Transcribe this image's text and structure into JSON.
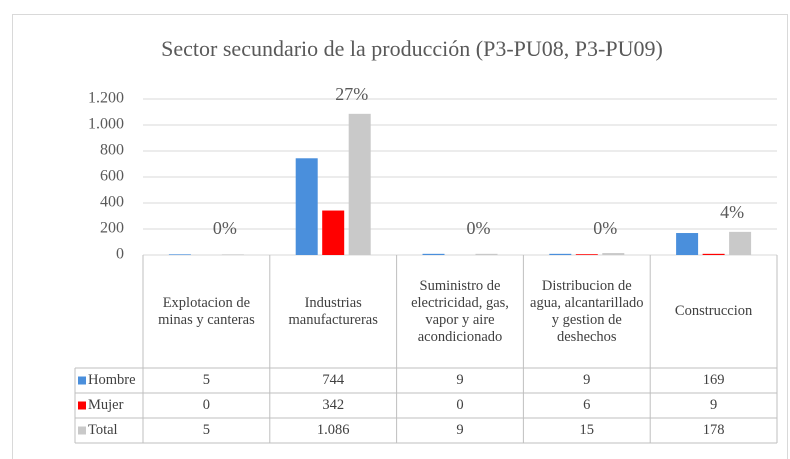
{
  "chart_data": {
    "type": "bar",
    "title": "Sector secundario de la producción (P3-PU08, P3-PU09)",
    "categories": [
      "Explotacion de minas y canteras",
      "Industrias manufactureras",
      "Suministro de electricidad, gas, vapor y aire acondicionado",
      "Distribucion de agua, alcantarillado y gestion de deshechos",
      "Construccion"
    ],
    "series": [
      {
        "name": "Hombre",
        "color": "#4a8fdc",
        "values": [
          5,
          744,
          9,
          9,
          169
        ]
      },
      {
        "name": "Mujer",
        "color": "#ff0000",
        "values": [
          0,
          342,
          0,
          6,
          9
        ]
      },
      {
        "name": "Total",
        "color": "#c9c9c9",
        "values": [
          5,
          1086,
          9,
          15,
          178
        ],
        "value_labels": [
          "5",
          "1.086",
          "9",
          "15",
          "178"
        ]
      }
    ],
    "percentages": {
      "values": [
        0,
        27,
        0,
        0,
        4
      ],
      "value_labels": [
        "0%",
        "27%",
        "0%",
        "0%",
        "4%"
      ]
    },
    "ylim": [
      0,
      1200
    ],
    "yticks": [
      0,
      200,
      400,
      600,
      800,
      {
        "value": 1000,
        "label": "1.000"
      },
      {
        "value": 1200,
        "label": "1.200"
      }
    ],
    "grid": true
  }
}
